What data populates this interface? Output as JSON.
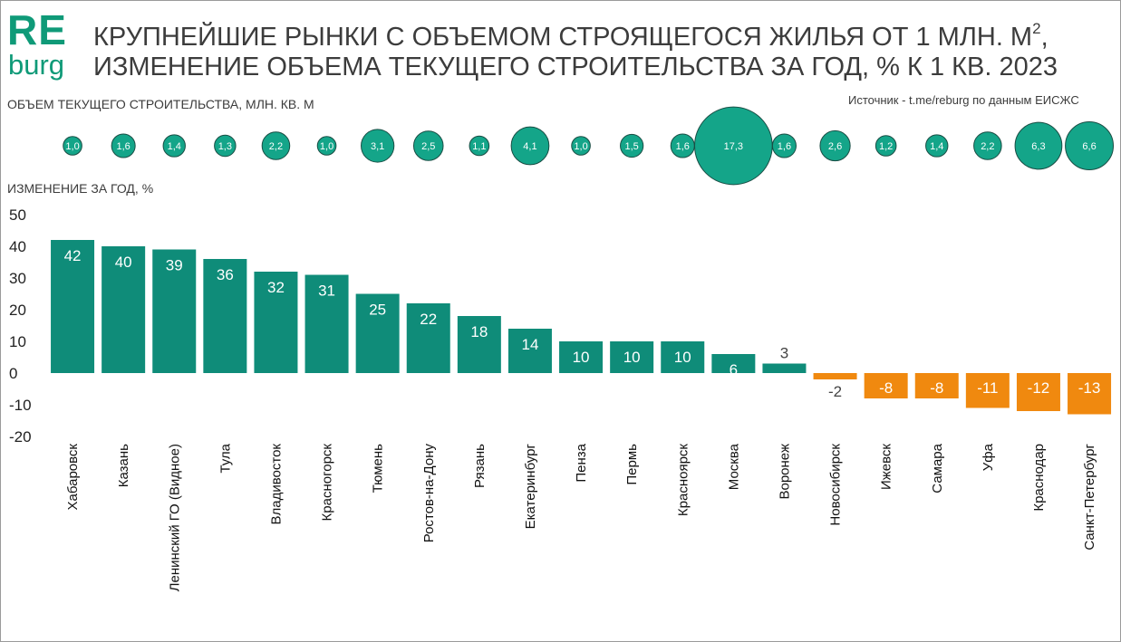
{
  "header": {
    "logo_top": "RE",
    "logo_bottom": "burg",
    "title_line1": "КРУПНЕЙШИЕ РЫНКИ С ОБЪЕМОМ СТРОЯЩЕГОСЯ ЖИЛЬЯ ОТ 1 МЛН. М",
    "title_line1_sup": "2",
    "title_line1_end": ",",
    "title_line2": "ИЗМЕНЕНИЕ ОБЪЕМА ТЕКУЩЕГО СТРОИТЕЛЬСТВА  ЗА ГОД, % К 1 КВ. 2023",
    "volume_label": "ОБЪЕМ ТЕКУЩЕГО СТРОИТЕЛЬСТВА, МЛН. КВ. М",
    "source": "Источник - t.me/reburg по данным ЕИСЖС",
    "change_label": "ИЗМЕНЕНИЕ ЗА ГОД, %"
  },
  "colors": {
    "positive": "#0f8c79",
    "negative": "#f0890f",
    "bubble_fill": "#14a589",
    "bubble_stroke": "#1a4d44"
  },
  "chart_data": {
    "type": "bar",
    "title": "Изменение объема текущего строительства за год, % к 1 кв. 2023",
    "ylabel": "ИЗМЕНЕНИЕ ЗА ГОД, %",
    "ylim": [
      -20,
      50
    ],
    "yticks": [
      50,
      40,
      30,
      20,
      10,
      0,
      -10,
      -20
    ],
    "categories": [
      "Хабаровск",
      "Казань",
      "Ленинский ГО (Видное)",
      "Тула",
      "Владивосток",
      "Красногорск",
      "Тюмень",
      "Ростов-на-Дону",
      "Рязань",
      "Екатеринбург",
      "Пенза",
      "Пермь",
      "Красноярск",
      "Москва",
      "Воронеж",
      "Новосибирск",
      "Ижевск",
      "Самара",
      "Уфа",
      "Краснодар",
      "Санкт-Петербург"
    ],
    "values": [
      42,
      40,
      39,
      36,
      32,
      31,
      25,
      22,
      18,
      14,
      10,
      10,
      10,
      6,
      3,
      -2,
      -8,
      -8,
      -11,
      -12,
      -13
    ],
    "value_labels": [
      "42",
      "40",
      "39",
      "36",
      "32",
      "31",
      "25",
      "22",
      "18",
      "14",
      "10",
      "10",
      "10",
      "6",
      "3",
      "-2",
      "-8",
      "-8",
      "-11",
      "-12",
      "-13"
    ],
    "volume": {
      "name": "Объем текущего строительства, млн. кв. м",
      "values": [
        1.0,
        1.6,
        1.4,
        1.3,
        2.2,
        1.0,
        3.1,
        2.5,
        1.1,
        4.1,
        1.0,
        1.5,
        1.6,
        17.3,
        1.6,
        2.6,
        1.2,
        1.4,
        2.2,
        6.3,
        6.6
      ],
      "labels": [
        "1,0",
        "1,6",
        "1,4",
        "1,3",
        "2,2",
        "1,0",
        "3,1",
        "2,5",
        "1,1",
        "4,1",
        "1,0",
        "1,5",
        "1,6",
        "17,3",
        "1,6",
        "2,6",
        "1,2",
        "1,4",
        "2,2",
        "6,3",
        "6,6"
      ]
    }
  }
}
